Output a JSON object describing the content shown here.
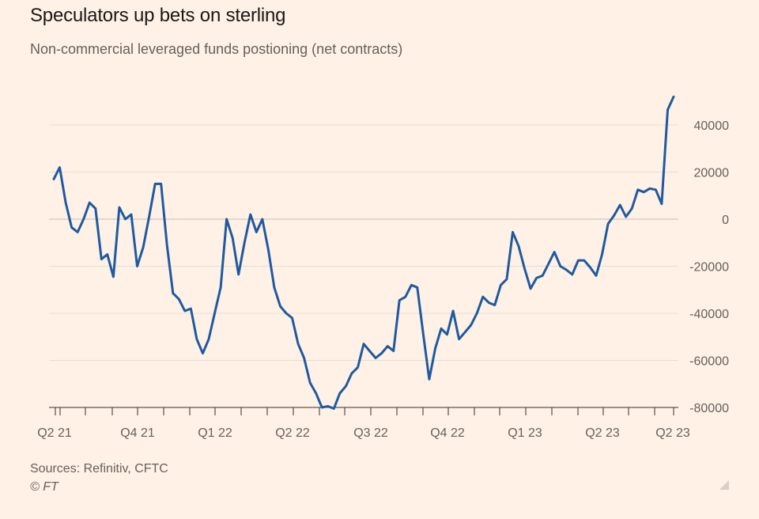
{
  "title": "Speculators up bets on sterling",
  "subtitle": "Non-commercial leveraged funds postioning (net contracts)",
  "source": "Sources: Refinitiv, CFTC",
  "copyright": "© FT",
  "colors": {
    "background": "#fff1e5",
    "line": "#1f5aa0",
    "grid": "#e8ddd3",
    "zero": "#c9bdb3",
    "text": "#66605c"
  },
  "chart_data": {
    "type": "line",
    "title": "Speculators up bets on sterling",
    "subtitle": "Non-commercial leveraged funds postioning (net contracts)",
    "xlabel": "",
    "ylabel": "",
    "ylim": [
      -80000,
      52000
    ],
    "yticks": [
      40000,
      20000,
      0,
      -20000,
      -40000,
      -60000,
      -80000
    ],
    "ytick_labels": [
      "40000",
      "20000",
      "0",
      "-20000",
      "-40000",
      "-60000",
      "-80000"
    ],
    "xticks": [
      "Q2 21",
      "Q4 21",
      "Q1 22",
      "Q2 22",
      "Q3 22",
      "Q4 22",
      "Q1 23",
      "Q2 23",
      "Q2 23"
    ],
    "y_axis_side": "right",
    "grid": true,
    "series": [
      {
        "values": [
          17000,
          22000,
          7000,
          -3500,
          -5500,
          0,
          7000,
          4500,
          -17000,
          -15000,
          -24500,
          5000,
          -0.5,
          2000,
          -20000,
          -12000,
          1000,
          15000,
          15000,
          -11000,
          -31500,
          -34000,
          -39000,
          -38000,
          -51000,
          -57000,
          -51000,
          -40000,
          -29000,
          0,
          -8000,
          -23500,
          -10000,
          2000,
          -5500,
          0,
          -13000,
          -29000,
          -37000,
          -40000,
          -42000,
          -53000,
          -59000,
          -69500,
          -74000,
          -80000,
          -79500,
          -80500,
          -74000,
          -71000,
          -65500,
          -63000,
          -53000,
          -56000,
          -59000,
          -57000,
          -54000,
          -56000,
          -34500,
          -33000,
          -28000,
          -29000,
          -49000,
          -68000,
          -55000,
          -46500,
          -49000,
          -39000,
          -51000,
          -48000,
          -45000,
          -40000,
          -33000,
          -35500,
          -36500,
          -28000,
          -25500,
          -5500,
          -11500,
          -21000,
          -29500,
          -25000,
          -24000,
          -19000,
          -14000,
          -20000,
          -21500,
          -23500,
          -17500,
          -17500,
          -20500,
          -24000,
          -15000,
          -2000,
          1500,
          6000,
          1000,
          4500,
          12500,
          11500,
          13000,
          12500,
          6500,
          46500,
          52000
        ]
      }
    ]
  }
}
